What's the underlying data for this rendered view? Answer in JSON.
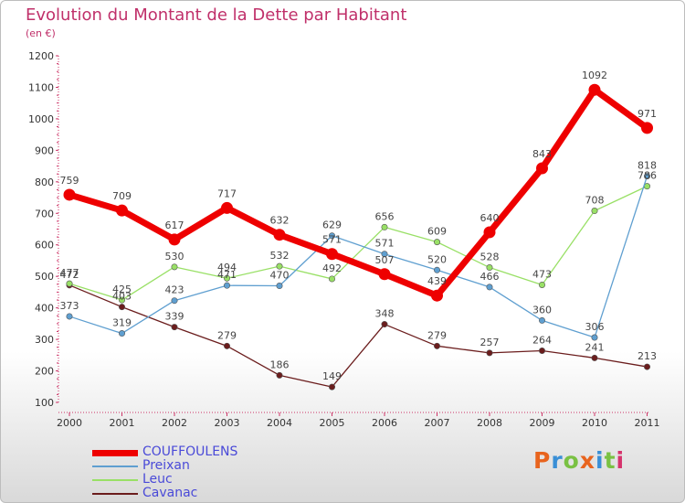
{
  "title": "Evolution du Montant de la Dette par Habitant",
  "subtitle": "(en €)",
  "logo": {
    "text": "Proxiti",
    "colors": [
      "#e8641e",
      "#3a8fd6",
      "#7ac143",
      "#e8641e",
      "#3a8fd6",
      "#7ac143",
      "#d6336c"
    ]
  },
  "chart_data": {
    "type": "line",
    "title": "Evolution du Montant de la Dette par Habitant",
    "ylabel": "(en €)",
    "xlabel": "",
    "ylim": [
      100,
      1200
    ],
    "yticks": [
      100,
      200,
      300,
      400,
      500,
      600,
      700,
      800,
      900,
      1000,
      1100,
      1200
    ],
    "grid": false,
    "legend_position": "bottom-left",
    "categories": [
      "2000",
      "2001",
      "2002",
      "2003",
      "2004",
      "2005",
      "2006",
      "2007",
      "2008",
      "2009",
      "2010",
      "2011"
    ],
    "series": [
      {
        "name": "COUFFOULENS",
        "color": "#ee0000",
        "values": [
          759,
          709,
          617,
          717,
          632,
          571,
          507,
          439,
          640,
          843,
          1092,
          971
        ]
      },
      {
        "name": "Preixan",
        "color": "#5f9fd0",
        "values": [
          373,
          319,
          423,
          471,
          470,
          629,
          571,
          520,
          466,
          360,
          306,
          818
        ]
      },
      {
        "name": "Leuc",
        "color": "#99e066",
        "values": [
          477,
          425,
          530,
          494,
          532,
          492,
          656,
          609,
          528,
          473,
          708,
          786
        ]
      },
      {
        "name": "Cavanac",
        "color": "#6b1d1d",
        "values": [
          472,
          403,
          339,
          279,
          186,
          149,
          348,
          279,
          257,
          264,
          241,
          213
        ]
      }
    ]
  }
}
